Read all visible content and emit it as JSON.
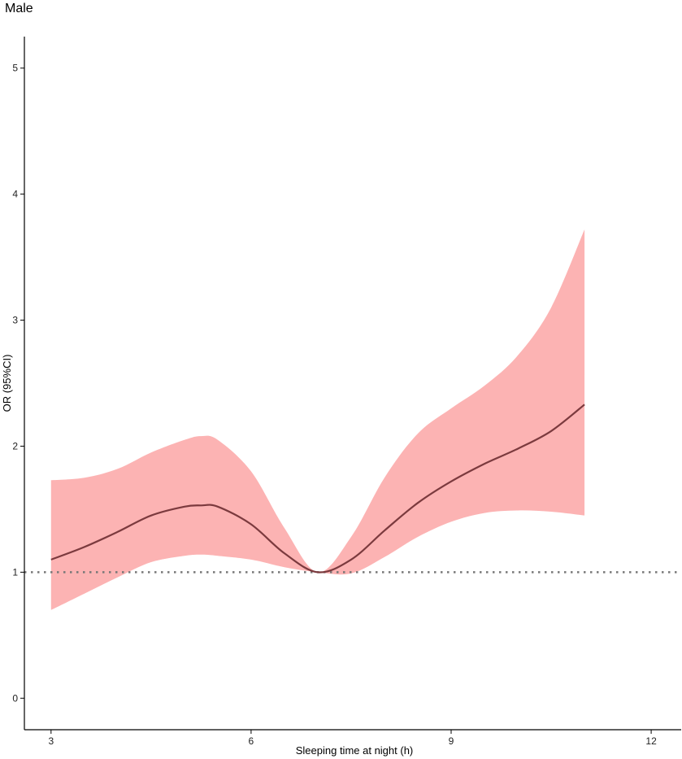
{
  "chart_data": {
    "type": "line",
    "title": "Male",
    "xlabel": "Sleeping time at night (h)",
    "ylabel": "OR (95%CI)",
    "xlim": [
      2.6,
      12.45
    ],
    "ylim": [
      -0.25,
      5.25
    ],
    "xticks": [
      3,
      6,
      9,
      12
    ],
    "yticks": [
      0,
      1,
      2,
      3,
      4,
      5
    ],
    "reference_line": {
      "y": 1,
      "style": "dotted"
    },
    "grid": false,
    "colors": {
      "line": "#7b3a3e",
      "band": "#fcb3b3",
      "reference": "#777777",
      "axis": "#000000"
    },
    "series": [
      {
        "x": [
          3.0,
          3.5,
          4.0,
          4.5,
          5.0,
          5.25,
          5.5,
          6.0,
          6.5,
          7.0,
          7.5,
          8.0,
          8.5,
          9.0,
          9.5,
          10.0,
          10.5,
          11.0
        ],
        "y": [
          1.1,
          1.2,
          1.32,
          1.45,
          1.52,
          1.53,
          1.52,
          1.38,
          1.15,
          1.0,
          1.1,
          1.33,
          1.55,
          1.72,
          1.86,
          1.98,
          2.12,
          2.33
        ],
        "lower": [
          0.7,
          0.83,
          0.96,
          1.08,
          1.13,
          1.14,
          1.13,
          1.1,
          1.04,
          1.0,
          0.99,
          1.12,
          1.28,
          1.4,
          1.47,
          1.49,
          1.48,
          1.45
        ],
        "upper": [
          1.73,
          1.75,
          1.82,
          1.95,
          2.05,
          2.08,
          2.05,
          1.8,
          1.35,
          1.0,
          1.28,
          1.75,
          2.1,
          2.3,
          2.48,
          2.72,
          3.1,
          3.72
        ]
      }
    ]
  }
}
